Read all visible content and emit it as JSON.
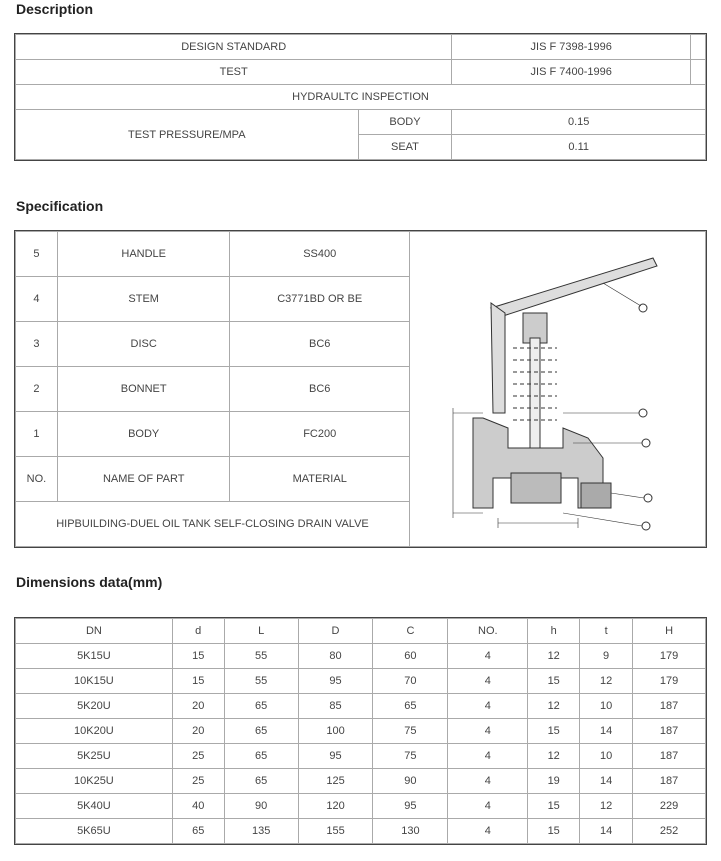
{
  "description": {
    "title": "Description",
    "design_standard_label": "DESIGN STANDARD",
    "design_standard_value": "JIS F 7398-1996",
    "test_label": "TEST",
    "test_value": "JIS F 7400-1996",
    "inspection": "HYDRAULTC INSPECTION",
    "pressure_label": "TEST PRESSURE/MPA",
    "body_label": "BODY",
    "body_value": "0.15",
    "seat_label": "SEAT",
    "seat_value": "0.11"
  },
  "specification": {
    "title": "Specification",
    "rows": [
      [
        "5",
        "HANDLE",
        "SS400"
      ],
      [
        "4",
        "STEM",
        "C3771BD OR BE"
      ],
      [
        "3",
        "DISC",
        "BC6"
      ],
      [
        "2",
        "BONNET",
        "BC6"
      ],
      [
        "1",
        "BODY",
        "FC200"
      ],
      [
        "NO.",
        "NAME OF PART",
        "MATERIAL"
      ]
    ],
    "footer": "HIPBUILDING-DUEL OIL TANK SELF-CLOSING DRAIN VALVE"
  },
  "dimensions": {
    "title": "Dimensions data(mm)",
    "headers": [
      "DN",
      "d",
      "L",
      "D",
      "C",
      "NO.",
      "h",
      "t",
      "H"
    ],
    "rows": [
      [
        "5K15U",
        "15",
        "55",
        "80",
        "60",
        "4",
        "12",
        "9",
        "179"
      ],
      [
        "10K15U",
        "15",
        "55",
        "95",
        "70",
        "4",
        "15",
        "12",
        "179"
      ],
      [
        "5K20U",
        "20",
        "65",
        "85",
        "65",
        "4",
        "12",
        "10",
        "187"
      ],
      [
        "10K20U",
        "20",
        "65",
        "100",
        "75",
        "4",
        "15",
        "14",
        "187"
      ],
      [
        "5K25U",
        "25",
        "65",
        "95",
        "75",
        "4",
        "12",
        "10",
        "187"
      ],
      [
        "10K25U",
        "25",
        "65",
        "125",
        "90",
        "4",
        "19",
        "14",
        "187"
      ],
      [
        "5K40U",
        "40",
        "90",
        "120",
        "95",
        "4",
        "15",
        "12",
        "229"
      ],
      [
        "5K65U",
        "65",
        "135",
        "155",
        "130",
        "4",
        "15",
        "14",
        "252"
      ]
    ]
  }
}
